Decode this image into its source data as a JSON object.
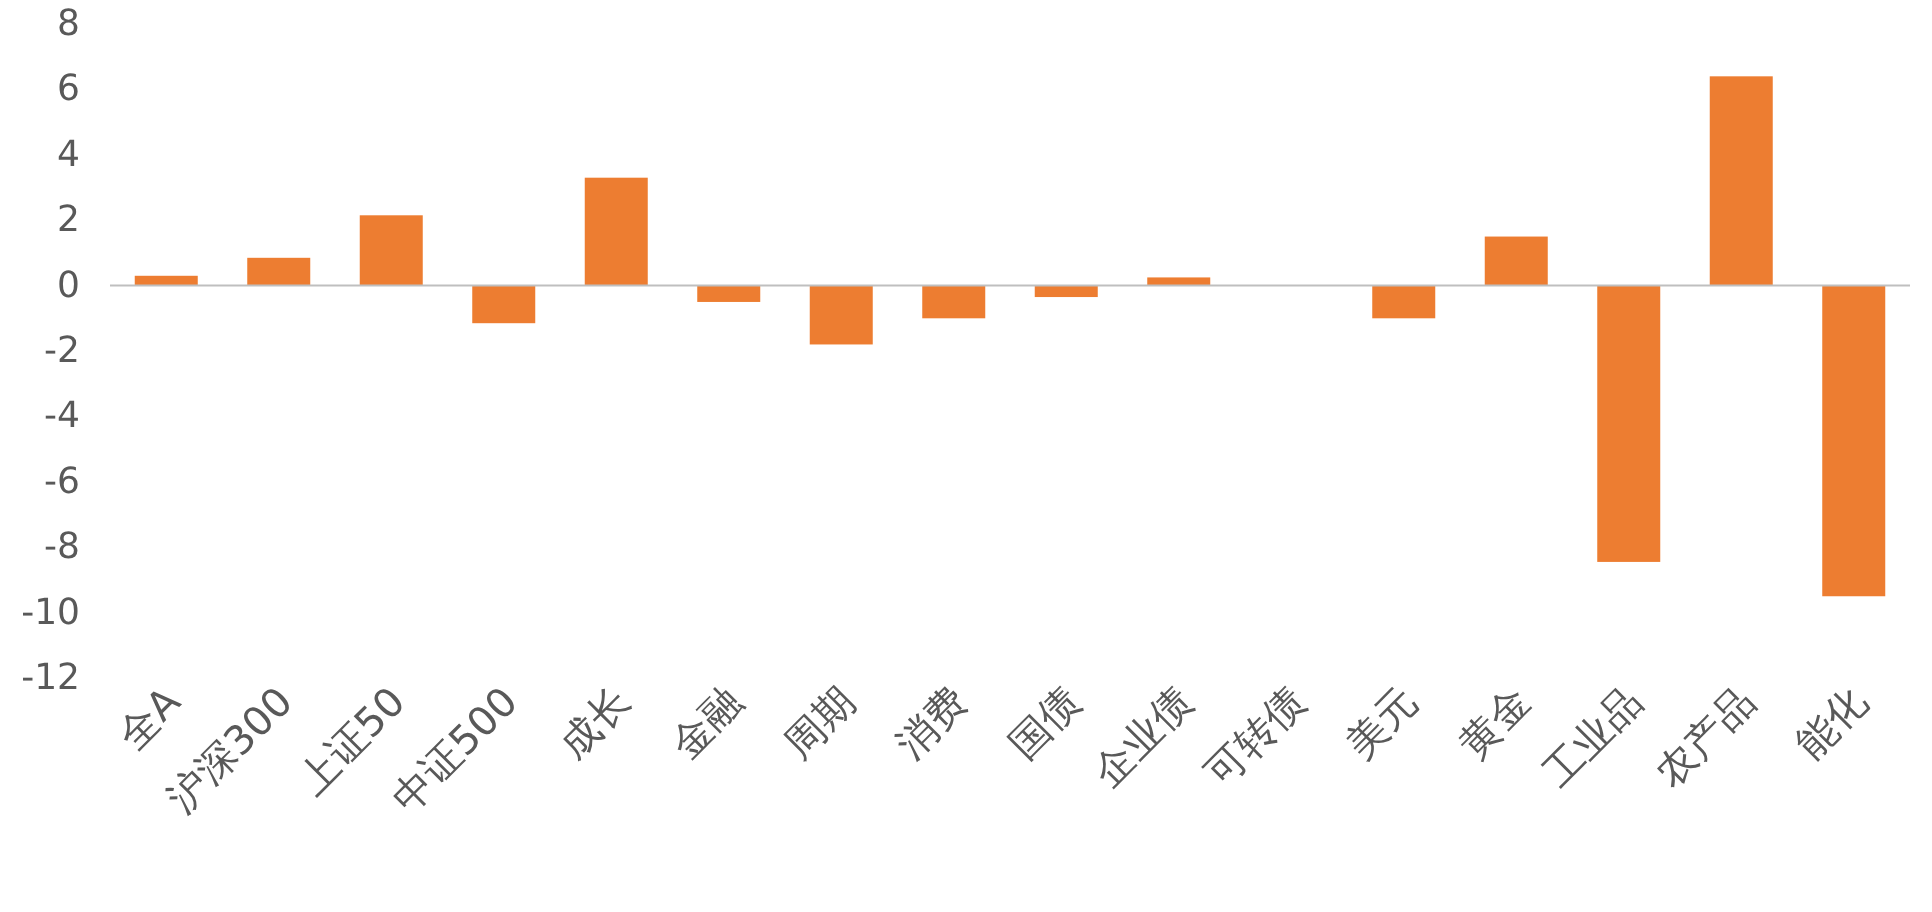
{
  "chart_data": {
    "type": "bar",
    "categories": [
      "全A",
      "沪深300",
      "上证50",
      "中证500",
      "成长",
      "金融",
      "周期",
      "消费",
      "国债",
      "企业债",
      "可转债",
      "美元",
      "黄金",
      "工业品",
      "农产品",
      "能化"
    ],
    "values": [
      0.3,
      0.85,
      2.15,
      -1.15,
      3.3,
      -0.5,
      -1.8,
      -1.0,
      -0.35,
      0.25,
      0,
      -1.0,
      1.5,
      -8.45,
      6.4,
      -9.5
    ],
    "color": "#ed7d31",
    "ylim": [
      -12,
      8
    ],
    "yticks": [
      -12,
      -10,
      -8,
      -6,
      -4,
      -2,
      0,
      2,
      4,
      6,
      8
    ]
  }
}
